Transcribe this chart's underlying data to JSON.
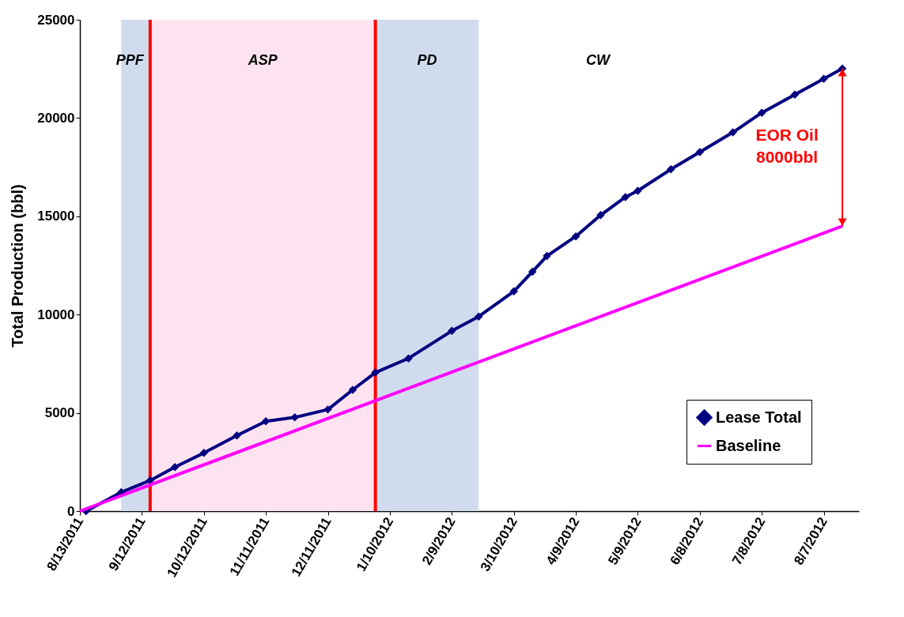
{
  "chart_data": {
    "type": "line",
    "ylabel": "Total Production (bbl)",
    "xlim": [
      "2011-08-13",
      "2012-08-24"
    ],
    "xticks": [
      {
        "value": "2011-08-13",
        "label": "8/13/2011"
      },
      {
        "value": "2011-09-12",
        "label": "9/12/2011"
      },
      {
        "value": "2011-10-12",
        "label": "10/12/2011"
      },
      {
        "value": "2011-11-11",
        "label": "11/11/2011"
      },
      {
        "value": "2011-12-11",
        "label": "12/11/2011"
      },
      {
        "value": "2012-01-10",
        "label": "1/10/2012"
      },
      {
        "value": "2012-02-09",
        "label": "2/9/2012"
      },
      {
        "value": "2012-03-10",
        "label": "3/10/2012"
      },
      {
        "value": "2012-04-09",
        "label": "4/9/2012"
      },
      {
        "value": "2012-05-09",
        "label": "5/9/2012"
      },
      {
        "value": "2012-06-08",
        "label": "6/8/2012"
      },
      {
        "value": "2012-07-08",
        "label": "7/8/2012"
      },
      {
        "value": "2012-08-07",
        "label": "8/7/2012"
      }
    ],
    "ylim": [
      0,
      25000
    ],
    "yticks": [
      0,
      5000,
      10000,
      15000,
      20000,
      25000
    ],
    "grid": false,
    "legend": "bottom right",
    "series": [
      {
        "name": "Lease Total",
        "color": "#000080",
        "marker": "diamond",
        "x": [
          "2011-08-16",
          "2011-09-02",
          "2011-09-16",
          "2011-09-28",
          "2011-10-12",
          "2011-10-28",
          "2011-11-11",
          "2011-11-25",
          "2011-12-11",
          "2011-12-23",
          "2012-01-03",
          "2012-01-19",
          "2012-02-09",
          "2012-02-22",
          "2012-03-10",
          "2012-03-19",
          "2012-03-26",
          "2012-04-09",
          "2012-04-21",
          "2012-05-03",
          "2012-05-09",
          "2012-05-25",
          "2012-06-08",
          "2012-06-24",
          "2012-07-08",
          "2012-07-24",
          "2012-08-07",
          "2012-08-16"
        ],
        "values": [
          0,
          960,
          1560,
          2240,
          2960,
          3850,
          4570,
          4770,
          5170,
          6170,
          7050,
          7770,
          9170,
          9900,
          11180,
          12180,
          12980,
          13980,
          15060,
          15980,
          16300,
          17390,
          18270,
          19270,
          20270,
          21190,
          22000,
          22520
        ]
      },
      {
        "name": "Baseline",
        "color": "#ff00ff",
        "marker": "none",
        "x": [
          "2011-08-13",
          "2012-08-16"
        ],
        "values": [
          0,
          14500
        ]
      }
    ],
    "bands": [
      {
        "axis": "x",
        "from": "2011-09-02",
        "to": "2011-09-16",
        "label": "PPF",
        "color": "#d0dcee"
      },
      {
        "axis": "x",
        "from": "2011-09-16",
        "to": "2012-01-03",
        "label": "ASP",
        "color": "#fde3f0"
      },
      {
        "axis": "x",
        "from": "2012-01-03",
        "to": "2012-02-22",
        "label": "PD",
        "color": "#d0dcee"
      }
    ],
    "ref_lines": [
      {
        "axis": "x",
        "value": "2011-09-16",
        "color": "#ff0000"
      },
      {
        "axis": "x",
        "value": "2012-01-03",
        "color": "#ff0000"
      }
    ],
    "annotations": [
      "CW",
      "EOR Oil\n8000bbl"
    ]
  }
}
